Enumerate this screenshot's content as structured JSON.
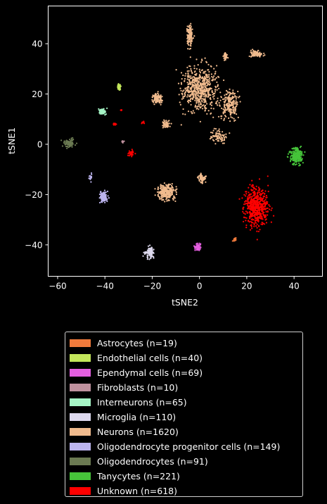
{
  "chart_data": {
    "type": "scatter",
    "xlabel": "tSNE2",
    "ylabel": "tSNE1",
    "xlim": [
      -64,
      52
    ],
    "ylim": [
      -52.5,
      55
    ],
    "xticks": [
      -60,
      -40,
      -20,
      0,
      20,
      40
    ],
    "yticks": [
      -40,
      -20,
      0,
      20,
      40
    ],
    "xtick_labels": [
      "−60",
      "−40",
      "−20",
      "0",
      "20",
      "40"
    ],
    "ytick_labels": [
      "−40",
      "−20",
      "0",
      "20",
      "40"
    ],
    "legend_position": "below",
    "background": "#000000",
    "series": [
      {
        "name": "Astrocytes (n=19)",
        "color": "#f07a3c",
        "count": 19,
        "clusters": [
          {
            "cx": 15,
            "cy": -38,
            "sx": 0.8,
            "sy": 0.9,
            "n": 19
          }
        ]
      },
      {
        "name": "Endothelial cells (n=40)",
        "color": "#c3e65b",
        "count": 40,
        "clusters": [
          {
            "cx": -34,
            "cy": 22.5,
            "sx": 0.7,
            "sy": 1.2,
            "n": 40
          }
        ]
      },
      {
        "name": "Ependymal cells (n=69)",
        "color": "#e45fe0",
        "count": 69,
        "clusters": [
          {
            "cx": -0.5,
            "cy": -41,
            "sx": 1.3,
            "sy": 1.3,
            "n": 69
          }
        ]
      },
      {
        "name": "Fibroblasts (n=10)",
        "color": "#bf919e",
        "count": 10,
        "clusters": [
          {
            "cx": -32.5,
            "cy": 1,
            "sx": 0.6,
            "sy": 0.6,
            "n": 10
          }
        ]
      },
      {
        "name": "Interneurons (n=65)",
        "color": "#a6f5c6",
        "count": 65,
        "clusters": [
          {
            "cx": -41,
            "cy": 13,
            "sx": 1.5,
            "sy": 1.0,
            "n": 65
          }
        ]
      },
      {
        "name": "Microglia (n=110)",
        "color": "#ddd9ee",
        "count": 110,
        "clusters": [
          {
            "cx": -21,
            "cy": -43,
            "sx": 1.8,
            "sy": 2.2,
            "n": 110
          }
        ]
      },
      {
        "name": "Neurons (n=1620)",
        "color": "#f0bb8e",
        "count": 1620,
        "clusters": [
          {
            "cx": 0,
            "cy": 22,
            "sx": 7,
            "sy": 8,
            "n": 600
          },
          {
            "cx": 13,
            "cy": 16,
            "sx": 3.5,
            "sy": 5,
            "n": 200
          },
          {
            "cx": -18,
            "cy": 18,
            "sx": 2,
            "sy": 2,
            "n": 100
          },
          {
            "cx": -14,
            "cy": 8,
            "sx": 1.5,
            "sy": 1.5,
            "n": 60
          },
          {
            "cx": -4,
            "cy": 43,
            "sx": 1.2,
            "sy": 4,
            "n": 130
          },
          {
            "cx": 24,
            "cy": 36,
            "sx": 2.5,
            "sy": 1.2,
            "n": 90
          },
          {
            "cx": 11,
            "cy": 35,
            "sx": 0.7,
            "sy": 1.3,
            "n": 40
          },
          {
            "cx": -14,
            "cy": -19,
            "sx": 3.5,
            "sy": 3,
            "n": 250
          },
          {
            "cx": 1,
            "cy": -13.5,
            "sx": 1.2,
            "sy": 1.5,
            "n": 70
          },
          {
            "cx": 8,
            "cy": 3,
            "sx": 3,
            "sy": 3,
            "n": 80
          }
        ]
      },
      {
        "name": "Oligodendrocyte progenitor cells (n=149)",
        "color": "#bdb5ef",
        "count": 149,
        "clusters": [
          {
            "cx": -40.5,
            "cy": -21,
            "sx": 1.6,
            "sy": 2.0,
            "n": 130
          },
          {
            "cx": -46,
            "cy": -13,
            "sx": 0.7,
            "sy": 1.8,
            "n": 19
          }
        ]
      },
      {
        "name": "Oligodendrocytes (n=91)",
        "color": "#6b7a52",
        "count": 91,
        "clusters": [
          {
            "cx": -55,
            "cy": 0.5,
            "sx": 2.2,
            "sy": 1.6,
            "n": 91
          }
        ]
      },
      {
        "name": "Tanycytes (n=221)",
        "color": "#46c43a",
        "count": 221,
        "clusters": [
          {
            "cx": 41,
            "cy": -4.5,
            "sx": 2.5,
            "sy": 3,
            "n": 221
          }
        ]
      },
      {
        "name": "Unknown (n=618)",
        "color": "#ff0000",
        "count": 618,
        "clusters": [
          {
            "cx": 24,
            "cy": -25,
            "sx": 5,
            "sy": 7,
            "n": 560
          },
          {
            "cx": -29,
            "cy": -3.5,
            "sx": 1.2,
            "sy": 1.2,
            "n": 30
          },
          {
            "cx": -36,
            "cy": 8,
            "sx": 0.6,
            "sy": 0.4,
            "n": 12
          },
          {
            "cx": -24,
            "cy": 8.5,
            "sx": 0.7,
            "sy": 0.6,
            "n": 12
          },
          {
            "cx": -33,
            "cy": 13.5,
            "sx": 0.3,
            "sy": 0.3,
            "n": 4
          }
        ]
      }
    ]
  }
}
